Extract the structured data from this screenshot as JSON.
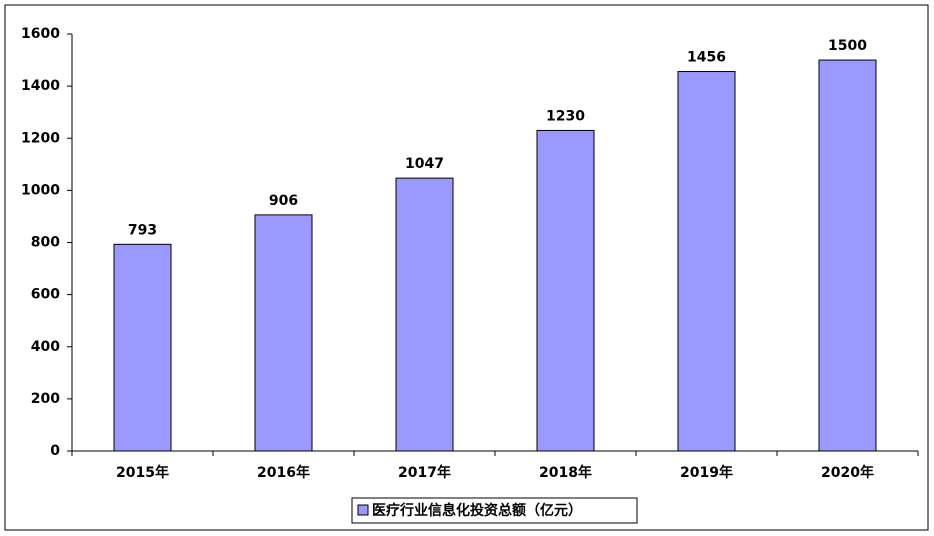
{
  "chart_data": {
    "type": "bar",
    "categories": [
      "2015年",
      "2016年",
      "2017年",
      "2018年",
      "2019年",
      "2020年"
    ],
    "series": [
      {
        "name": "医疗行业信息化投资总额（亿元）",
        "color": "#9999ff",
        "values": [
          793,
          906,
          1047,
          1230,
          1456,
          1500
        ]
      }
    ],
    "ylim": [
      0,
      1600
    ],
    "yticks": [
      0,
      200,
      400,
      600,
      800,
      1000,
      1200,
      1400,
      1600
    ],
    "legend": "bottom",
    "data_labels": true
  }
}
